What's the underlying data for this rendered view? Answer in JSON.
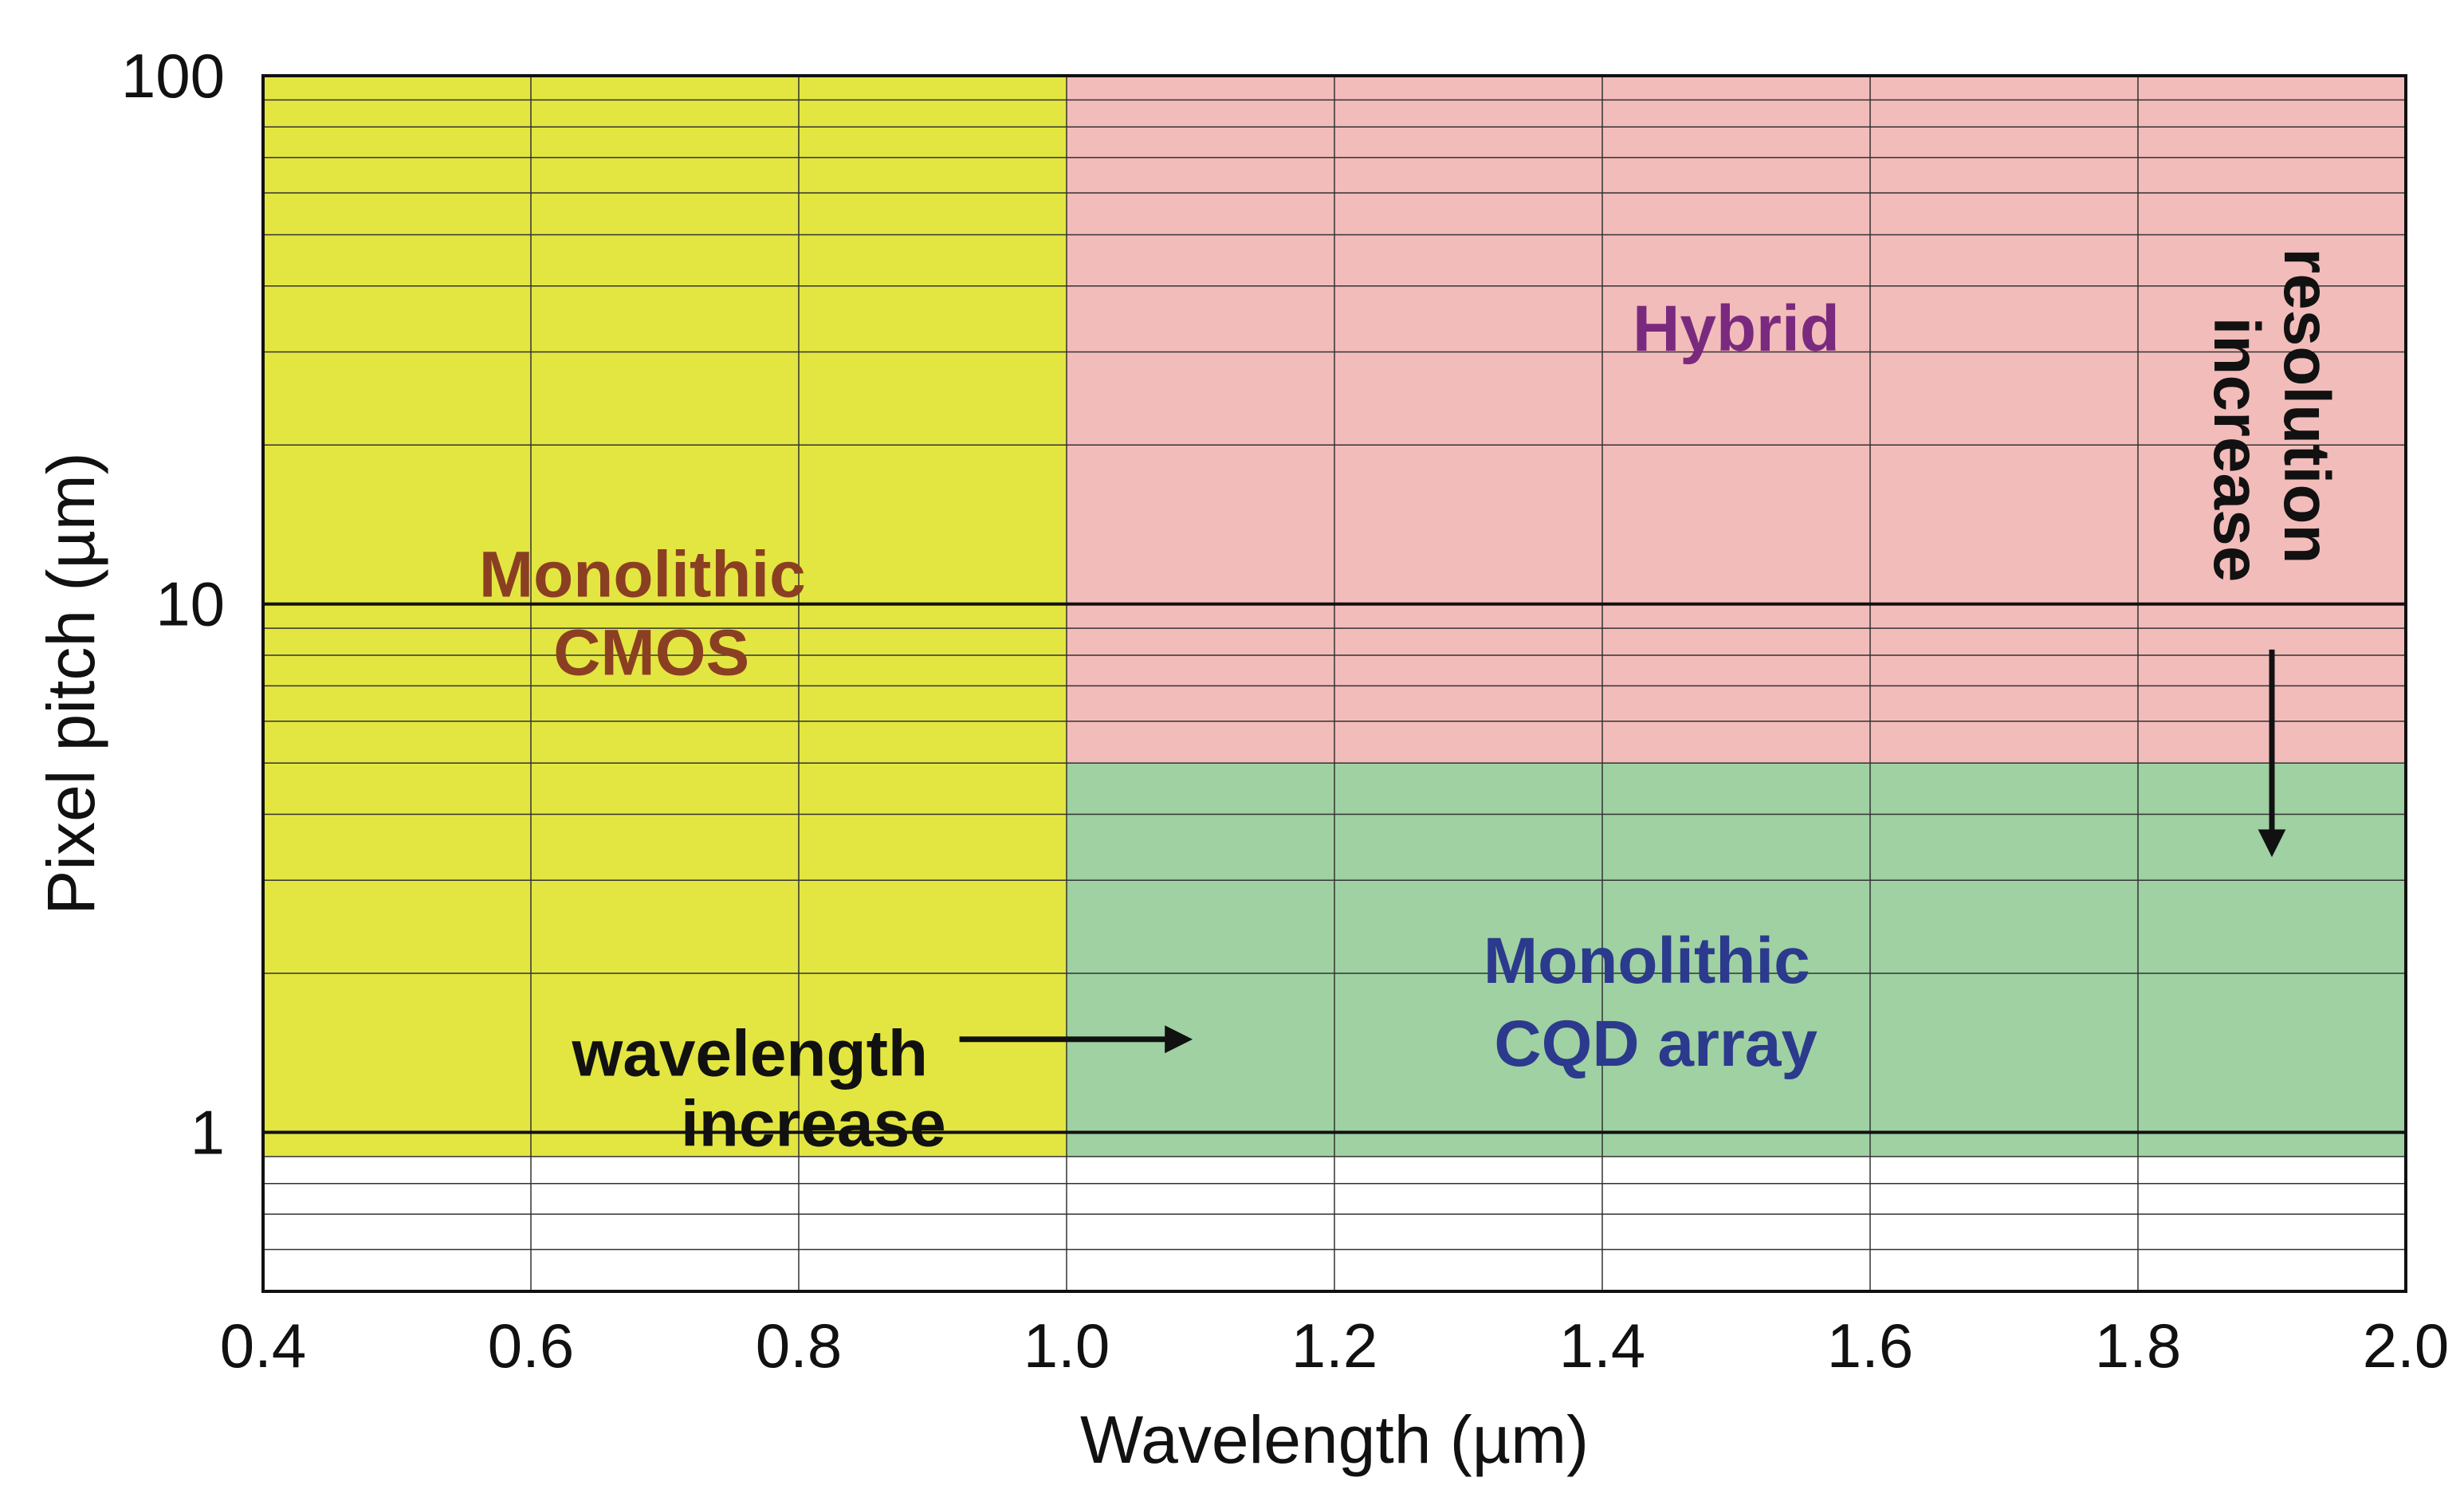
{
  "chart_data": {
    "type": "area",
    "title": "",
    "xlabel": "Wavelength (µm)",
    "ylabel": "Pixel pitch (µm)",
    "xlim": [
      0.4,
      2.0
    ],
    "ylim": [
      0.5,
      100
    ],
    "yscale": "log",
    "grid": true,
    "x_ticks": [
      {
        "value": 0.4,
        "label": "0.4"
      },
      {
        "value": 0.6,
        "label": "0.6"
      },
      {
        "value": 0.8,
        "label": "0.8"
      },
      {
        "value": 1.0,
        "label": "1.0"
      },
      {
        "value": 1.2,
        "label": "1.2"
      },
      {
        "value": 1.4,
        "label": "1.4"
      },
      {
        "value": 1.6,
        "label": "1.6"
      },
      {
        "value": 1.8,
        "label": "1.8"
      },
      {
        "value": 2.0,
        "label": "2.0"
      }
    ],
    "y_ticks": [
      {
        "value": 1,
        "label": "1"
      },
      {
        "value": 10,
        "label": "10"
      },
      {
        "value": 100,
        "label": "100"
      }
    ],
    "regions": [
      {
        "name": "monolithic-cmos",
        "label_lines": [
          "Monolithic",
          "CMOS"
        ],
        "x": [
          0.4,
          1.0
        ],
        "y": [
          0.9,
          100
        ],
        "fill": "#e3e641",
        "label_color": "#8b3f22"
      },
      {
        "name": "hybrid",
        "label_lines": [
          "Hybrid"
        ],
        "x": [
          1.0,
          2.0
        ],
        "y": [
          5,
          100
        ],
        "fill": "#f2bcba",
        "label_color": "#7a2a7e"
      },
      {
        "name": "monolithic-cqd",
        "label_lines": [
          "Monolithic",
          "CQD array"
        ],
        "x": [
          1.0,
          2.0
        ],
        "y": [
          0.9,
          5
        ],
        "fill": "#9fd1a3",
        "label_color": "#2b3a8c"
      }
    ],
    "annotations": [
      {
        "name": "wavelength-increase",
        "lines": [
          "wavelength",
          "increase"
        ],
        "arrow": "right"
      },
      {
        "name": "resolution-increase",
        "lines": [
          "resolution",
          "increase"
        ],
        "arrow": "down"
      }
    ]
  }
}
